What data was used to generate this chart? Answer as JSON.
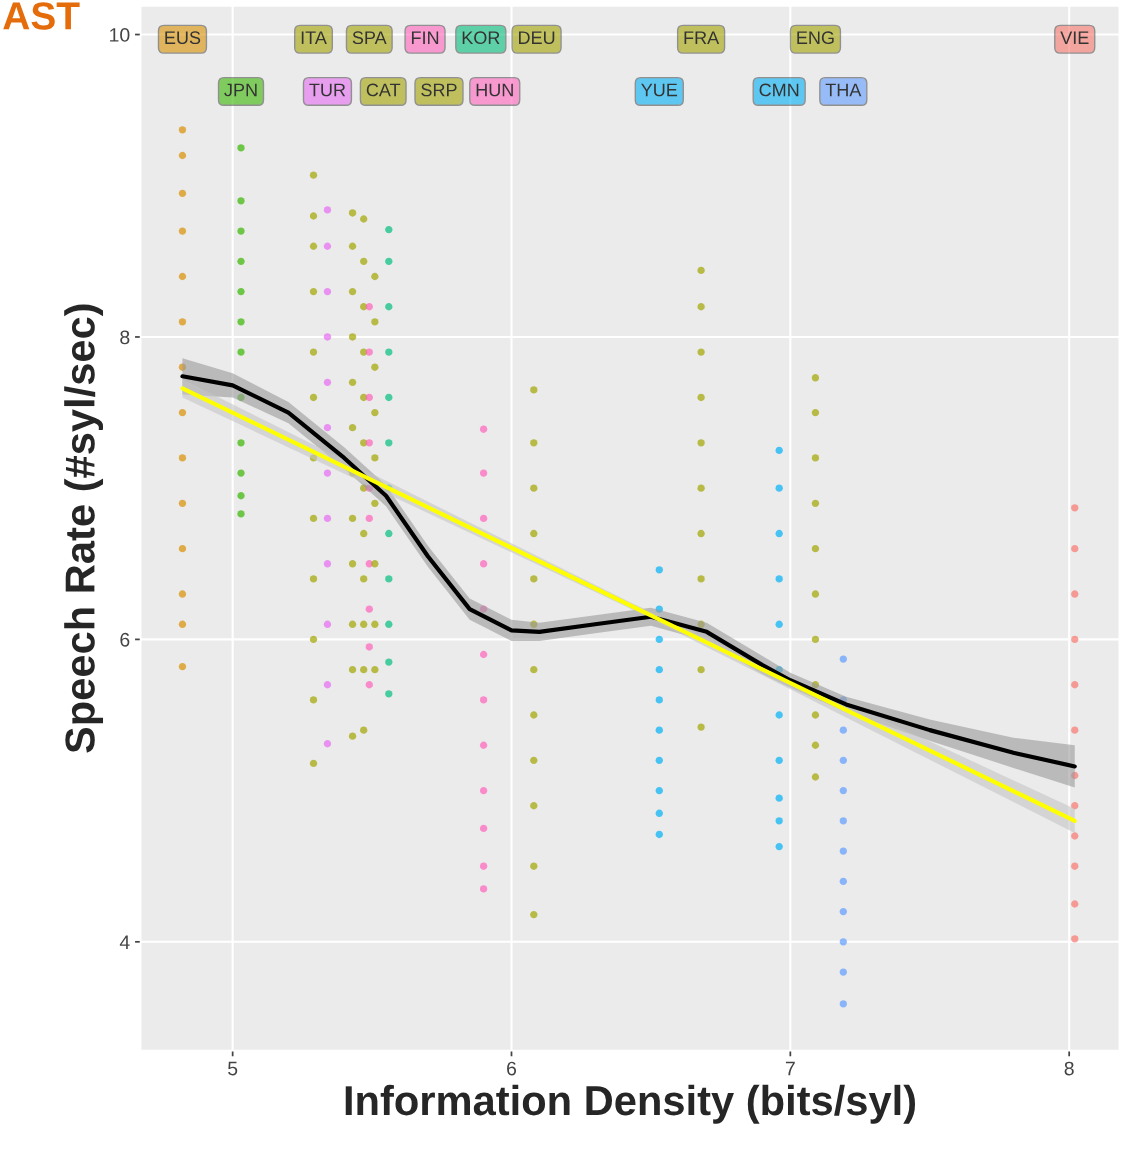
{
  "chart_data": {
    "type": "scatter",
    "xlabel": "Information Density (bits/syl)",
    "ylabel": "Speech Rate (#syl/sec)",
    "annotations": [
      "AST"
    ],
    "xlim": [
      4.67,
      8.18
    ],
    "ylim": [
      3.28,
      10.19
    ],
    "xticks": [
      5,
      6,
      7,
      8
    ],
    "yticks": [
      4,
      6,
      8,
      10
    ],
    "grid": true,
    "legend": false,
    "marker": "circle",
    "series": [
      {
        "name": "EUS",
        "color": "#d89000",
        "x": [
          4.82,
          4.82,
          4.82,
          4.82,
          4.82,
          4.82,
          4.82,
          4.82,
          4.82,
          4.82,
          4.82,
          4.82,
          4.82,
          4.82
        ],
        "values": [
          9.37,
          9.2,
          8.95,
          8.7,
          8.4,
          8.1,
          7.8,
          7.5,
          7.2,
          6.9,
          6.6,
          6.3,
          6.1,
          5.82
        ]
      },
      {
        "name": "JPN",
        "color": "#39b600",
        "x": [
          5.03,
          5.03,
          5.03,
          5.03,
          5.03,
          5.03,
          5.03,
          5.03,
          5.03,
          5.03,
          5.03,
          5.03
        ],
        "values": [
          9.25,
          8.9,
          8.7,
          8.5,
          8.3,
          8.1,
          7.9,
          7.6,
          7.3,
          7.1,
          6.95,
          6.83
        ]
      },
      {
        "name": "ITA",
        "color": "#a3a500",
        "x": [
          5.29,
          5.29,
          5.29,
          5.29,
          5.29,
          5.29,
          5.29,
          5.29,
          5.29,
          5.29,
          5.29,
          5.29
        ],
        "values": [
          9.07,
          8.8,
          8.6,
          8.3,
          7.9,
          7.6,
          7.2,
          6.8,
          6.4,
          6.0,
          5.6,
          5.18
        ]
      },
      {
        "name": "TUR",
        "color": "#e76bf3",
        "x": [
          5.34,
          5.34,
          5.34,
          5.34,
          5.34,
          5.34,
          5.34,
          5.34,
          5.34,
          5.34,
          5.34,
          5.34
        ],
        "values": [
          8.84,
          8.6,
          8.3,
          8.0,
          7.7,
          7.4,
          7.1,
          6.8,
          6.5,
          6.1,
          5.7,
          5.31
        ]
      },
      {
        "name": "SPA",
        "color": "#a3a500",
        "x": [
          5.43,
          5.43,
          5.43,
          5.43,
          5.43,
          5.43,
          5.43,
          5.43,
          5.43,
          5.43,
          5.43,
          5.43
        ],
        "values": [
          8.82,
          8.6,
          8.3,
          8.0,
          7.7,
          7.4,
          7.1,
          6.8,
          6.5,
          6.1,
          5.8,
          5.36
        ]
      },
      {
        "name": "CAT",
        "color": "#a3a500",
        "x": [
          5.47,
          5.47,
          5.47,
          5.47,
          5.47,
          5.47,
          5.47,
          5.47,
          5.47,
          5.47,
          5.47,
          5.47
        ],
        "values": [
          8.78,
          8.5,
          8.2,
          7.9,
          7.6,
          7.3,
          7.0,
          6.7,
          6.4,
          6.1,
          5.8,
          5.4
        ]
      },
      {
        "name": "FIN",
        "color": "#ff62bc",
        "x": [
          5.49,
          5.49,
          5.49,
          5.49,
          5.49,
          5.49,
          5.49,
          5.49,
          5.49,
          5.49
        ],
        "values": [
          8.2,
          7.9,
          7.6,
          7.3,
          7.0,
          6.8,
          6.5,
          6.2,
          5.95,
          5.7
        ]
      },
      {
        "name": "SRP",
        "color": "#a3a500",
        "x": [
          5.51,
          5.51,
          5.51,
          5.51,
          5.51,
          5.51,
          5.51,
          5.51,
          5.51
        ],
        "values": [
          8.4,
          8.1,
          7.8,
          7.5,
          7.2,
          6.9,
          6.5,
          6.1,
          5.8
        ]
      },
      {
        "name": "KOR",
        "color": "#00bf7d",
        "x": [
          5.56,
          5.56,
          5.56,
          5.56,
          5.56,
          5.56,
          5.56,
          5.56,
          5.56,
          5.56,
          5.56,
          5.56
        ],
        "values": [
          8.71,
          8.5,
          8.2,
          7.9,
          7.6,
          7.3,
          7.0,
          6.7,
          6.4,
          6.1,
          5.85,
          5.64
        ]
      },
      {
        "name": "HUN",
        "color": "#ff62bc",
        "x": [
          5.9,
          5.9,
          5.9,
          5.9,
          5.9,
          5.9,
          5.9,
          5.9,
          5.9,
          5.9,
          5.9,
          5.9
        ],
        "values": [
          7.39,
          7.1,
          6.8,
          6.5,
          6.2,
          5.9,
          5.6,
          5.3,
          5.0,
          4.75,
          4.5,
          4.35
        ]
      },
      {
        "name": "DEU",
        "color": "#a3a500",
        "x": [
          6.08,
          6.08,
          6.08,
          6.08,
          6.08,
          6.08,
          6.08,
          6.08,
          6.08,
          6.08,
          6.08,
          6.08
        ],
        "values": [
          7.65,
          7.3,
          7.0,
          6.7,
          6.4,
          6.1,
          5.8,
          5.5,
          5.2,
          4.9,
          4.5,
          4.18
        ]
      },
      {
        "name": "YUE",
        "color": "#00b0f6",
        "x": [
          6.53,
          6.53,
          6.53,
          6.53,
          6.53,
          6.53,
          6.53,
          6.53,
          6.53,
          6.53
        ],
        "values": [
          6.46,
          6.2,
          6.0,
          5.8,
          5.6,
          5.4,
          5.2,
          5.0,
          4.85,
          4.71
        ]
      },
      {
        "name": "FRA",
        "color": "#a3a500",
        "x": [
          6.68,
          6.68,
          6.68,
          6.68,
          6.68,
          6.68,
          6.68,
          6.68,
          6.68,
          6.68,
          6.68
        ],
        "values": [
          8.44,
          8.2,
          7.9,
          7.6,
          7.3,
          7.0,
          6.7,
          6.4,
          6.1,
          5.8,
          5.42
        ]
      },
      {
        "name": "CMN",
        "color": "#00b0f6",
        "x": [
          6.96,
          6.96,
          6.96,
          6.96,
          6.96,
          6.96,
          6.96,
          6.96,
          6.96,
          6.96,
          6.96
        ],
        "values": [
          7.25,
          7.0,
          6.7,
          6.4,
          6.1,
          5.8,
          5.5,
          5.2,
          4.95,
          4.8,
          4.63
        ]
      },
      {
        "name": "ENG",
        "color": "#a3a500",
        "x": [
          7.09,
          7.09,
          7.09,
          7.09,
          7.09,
          7.09,
          7.09,
          7.09,
          7.09,
          7.09,
          7.09
        ],
        "values": [
          7.73,
          7.5,
          7.2,
          6.9,
          6.6,
          6.3,
          6.0,
          5.7,
          5.5,
          5.3,
          5.09
        ]
      },
      {
        "name": "THA",
        "color": "#619cff",
        "x": [
          7.19,
          7.19,
          7.19,
          7.19,
          7.19,
          7.19,
          7.19,
          7.19,
          7.19,
          7.19,
          7.19,
          7.19
        ],
        "values": [
          5.87,
          5.6,
          5.4,
          5.2,
          5.0,
          4.8,
          4.6,
          4.4,
          4.2,
          4.0,
          3.8,
          3.59
        ]
      },
      {
        "name": "VIE",
        "color": "#f8766d",
        "x": [
          8.02,
          8.02,
          8.02,
          8.02,
          8.02,
          8.02,
          8.02,
          8.02,
          8.02,
          8.02,
          8.02,
          8.02
        ],
        "values": [
          6.87,
          6.6,
          6.3,
          6.0,
          5.7,
          5.4,
          5.1,
          4.9,
          4.7,
          4.5,
          4.25,
          4.02
        ]
      },
      {
        "type": "line",
        "marker": "none",
        "color": "#000000",
        "x": [
          4.82,
          5.0,
          5.2,
          5.4,
          5.55,
          5.7,
          5.85,
          6.0,
          6.1,
          6.3,
          6.5,
          6.7,
          6.9,
          7.0,
          7.2,
          7.5,
          7.8,
          8.02
        ],
        "values": [
          7.74,
          7.68,
          7.5,
          7.2,
          6.95,
          6.55,
          6.2,
          6.06,
          6.05,
          6.1,
          6.15,
          6.05,
          5.83,
          5.73,
          5.57,
          5.4,
          5.25,
          5.16
        ],
        "lower": [
          7.62,
          7.6,
          7.43,
          7.13,
          6.88,
          6.48,
          6.13,
          5.99,
          5.99,
          6.04,
          6.09,
          5.99,
          5.77,
          5.68,
          5.52,
          5.33,
          5.15,
          5.02
        ],
        "upper": [
          7.86,
          7.76,
          7.57,
          7.27,
          7.02,
          6.62,
          6.27,
          6.13,
          6.11,
          6.16,
          6.21,
          6.11,
          5.89,
          5.78,
          5.62,
          5.47,
          5.35,
          5.3
        ]
      },
      {
        "type": "line",
        "marker": "none",
        "color": "#ffff00",
        "x": [
          4.82,
          6.42,
          8.02
        ],
        "values": [
          7.66,
          6.23,
          4.8
        ],
        "lower": [
          7.6,
          6.21,
          4.72
        ],
        "upper": [
          7.72,
          6.25,
          4.88
        ]
      }
    ]
  }
}
